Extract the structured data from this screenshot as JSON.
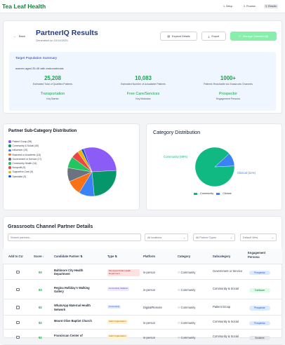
{
  "app": {
    "brand": "Tea Leaf Health"
  },
  "steps": [
    "1. Setup",
    "2. Process",
    "3. Results"
  ],
  "header": {
    "back_label": "Back",
    "title": "PartnerIQ Results",
    "generated": "Generated on 10/14/2025",
    "expand_label": "Expand Details",
    "export_label": "Export",
    "manage_label": "Manage Outreach (0)"
  },
  "summary": {
    "title": "Target Population Summary",
    "population": "women aged 25-45 with endometriosis",
    "metrics": [
      {
        "value": "25,208",
        "label": "Estimated Total of Qualified Patients"
      },
      {
        "value": "10,083",
        "label": "Estimated Number of Actuatable Patients"
      },
      {
        "value": "1000+",
        "label": "Patients Reachable via Grassroots Channels"
      }
    ],
    "factors": [
      {
        "value": "Transportation",
        "label": "Key Barrier"
      },
      {
        "value": "Free Care/Services",
        "label": "Key Motivator"
      },
      {
        "value": "Prospector",
        "label": "Engagement Persona"
      }
    ]
  },
  "subcategory": {
    "title": "Partner Sub-Category Distribution",
    "legend": [
      "Patient Group (55)",
      "Community & Social (45)",
      "Influencer (19)",
      "Business or Academic (18)",
      "Government or Service (17)",
      "Community Health (14)",
      "Nonprofit (9)",
      "Supportive Care (5)",
      "Specialist (3)"
    ],
    "colors": [
      "#8b5cf6",
      "#059669",
      "#3b82f6",
      "#f97316",
      "#6b7280",
      "#22c55e",
      "#ef4444",
      "#eab308",
      "#1d4ed8"
    ],
    "chart_data": {
      "type": "pie",
      "categories": [
        "Patient Group",
        "Community & Social",
        "Influencer",
        "Business or Academic",
        "Government or Service",
        "Community Health",
        "Nonprofit",
        "Supportive Care",
        "Specialist"
      ],
      "values": [
        55,
        45,
        19,
        18,
        17,
        14,
        9,
        5,
        3
      ]
    }
  },
  "category": {
    "title": "Category Distribution",
    "labels": [
      "Community (89%)",
      "Clinical (11%)"
    ],
    "legend": [
      "Community",
      "Clinical"
    ],
    "colors": [
      "#10b981",
      "#3b82f6"
    ],
    "chart_data": {
      "type": "pie",
      "categories": [
        "Community",
        "Clinical"
      ],
      "values": [
        89,
        11
      ]
    }
  },
  "table": {
    "title": "Grassroots Channel Partner Details",
    "search_placeholder": "Search partners...",
    "filters": [
      "All locations",
      "All Partner Types",
      "Default View"
    ],
    "columns": [
      "Add to CU",
      "Score ↓",
      "Candidate Partner ⇅",
      "Type ⇅",
      "Platform",
      "Category",
      "Subcategory",
      "Engagement Persona"
    ],
    "rows": [
      {
        "score": "93",
        "name": "Baltimore City Health Department",
        "type": "Municipal Public Health Department",
        "type_bg": "#fee2e2",
        "type_fg": "#b91c1c",
        "platform": "in-person",
        "category": "Community",
        "subcategory": "Government or Service",
        "persona": "Prospector",
        "persona_bg": "#dbeafe",
        "persona_fg": "#1d4ed8"
      },
      {
        "score": "93",
        "name": "Regina Holliday's Walking Gallery",
        "type": "Community Initiative",
        "type_bg": "#ede9fe",
        "type_fg": "#6d28d9",
        "platform": "in-person",
        "category": "Community",
        "subcategory": "Community & Social",
        "persona": "Trailblazer",
        "persona_bg": "#dcfce7",
        "persona_fg": "#15803d"
      },
      {
        "score": "92",
        "name": "WhatsApp Maternal Health Network",
        "type": "Community",
        "type_bg": "#dbeafe",
        "type_fg": "#1d4ed8",
        "platform": "Digital/Remote",
        "category": "Community",
        "subcategory": "Patient Group",
        "persona": "Prospector",
        "persona_bg": "#dbeafe",
        "persona_fg": "#1d4ed8"
      },
      {
        "score": "92",
        "name": "Mount Olive Baptist Church",
        "type": "Faith Organization",
        "type_bg": "#fef3c7",
        "type_fg": "#b45309",
        "platform": "in-person",
        "category": "Community",
        "subcategory": "Community & Social",
        "persona": "Prospector",
        "persona_bg": "#dbeafe",
        "persona_fg": "#1d4ed8"
      },
      {
        "score": "92",
        "name": "Franciscan Center of",
        "type": "Faith Organization",
        "type_bg": "#fef3c7",
        "type_fg": "#b45309",
        "platform": "in-person",
        "category": "Community",
        "subcategory": "Community & Social",
        "persona": "Sustainer",
        "persona_bg": "#e5e7eb",
        "persona_fg": "#374151"
      }
    ]
  }
}
